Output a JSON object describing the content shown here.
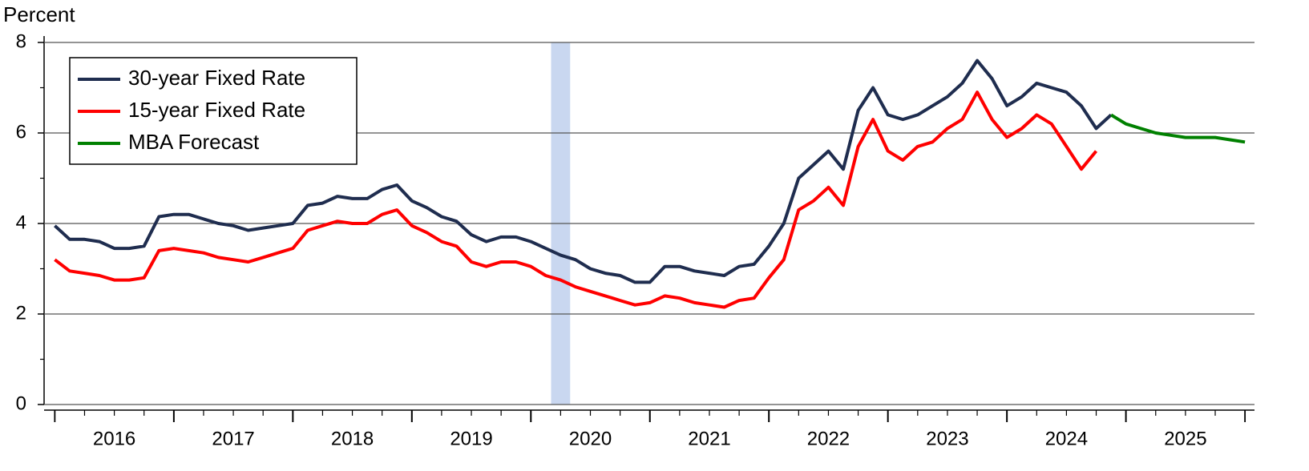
{
  "chart_data": {
    "type": "line",
    "y_label": "Percent",
    "x": [
      2016,
      2016.125,
      2016.25,
      2016.375,
      2016.5,
      2016.625,
      2016.75,
      2016.875,
      2017,
      2017.125,
      2017.25,
      2017.375,
      2017.5,
      2017.625,
      2017.75,
      2017.875,
      2018,
      2018.125,
      2018.25,
      2018.375,
      2018.5,
      2018.625,
      2018.75,
      2018.875,
      2019,
      2019.125,
      2019.25,
      2019.375,
      2019.5,
      2019.625,
      2019.75,
      2019.875,
      2020,
      2020.125,
      2020.25,
      2020.375,
      2020.5,
      2020.625,
      2020.75,
      2020.875,
      2021,
      2021.125,
      2021.25,
      2021.375,
      2021.5,
      2021.625,
      2021.75,
      2021.875,
      2022,
      2022.125,
      2022.25,
      2022.375,
      2022.5,
      2022.625,
      2022.75,
      2022.875,
      2023,
      2023.125,
      2023.25,
      2023.375,
      2023.5,
      2023.625,
      2023.75,
      2023.875,
      2024,
      2024.125,
      2024.25,
      2024.375,
      2024.5,
      2024.625,
      2024.75,
      2024.875,
      2025,
      2025.125,
      2025.25,
      2025.375,
      2025.5,
      2025.625,
      2025.75,
      2025.875,
      2026
    ],
    "series": [
      {
        "name": "30-year Fixed Rate",
        "color": "#1f2d4f",
        "values": [
          3.95,
          3.65,
          3.65,
          3.6,
          3.45,
          3.45,
          3.5,
          4.15,
          4.2,
          4.2,
          4.1,
          4.0,
          3.95,
          3.85,
          3.9,
          3.95,
          4.0,
          4.4,
          4.45,
          4.6,
          4.55,
          4.55,
          4.75,
          4.85,
          4.5,
          4.35,
          4.15,
          4.05,
          3.75,
          3.6,
          3.7,
          3.7,
          3.6,
          3.45,
          3.3,
          3.2,
          3.0,
          2.9,
          2.85,
          2.7,
          2.7,
          3.05,
          3.05,
          2.95,
          2.9,
          2.85,
          3.05,
          3.1,
          3.5,
          4.0,
          5.0,
          5.3,
          5.6,
          5.2,
          6.5,
          7.0,
          6.4,
          6.3,
          6.4,
          6.6,
          6.8,
          7.1,
          7.6,
          7.2,
          6.6,
          6.8,
          7.1,
          7.0,
          6.9,
          6.6,
          6.1,
          6.4,
          null,
          null,
          null,
          null,
          null,
          null,
          null,
          null,
          null
        ]
      },
      {
        "name": "15-year Fixed Rate",
        "color": "#ff0000",
        "values": [
          3.2,
          2.95,
          2.9,
          2.85,
          2.75,
          2.75,
          2.8,
          3.4,
          3.45,
          3.4,
          3.35,
          3.25,
          3.2,
          3.15,
          3.25,
          3.35,
          3.45,
          3.85,
          3.95,
          4.05,
          4.0,
          4.0,
          4.2,
          4.3,
          3.95,
          3.8,
          3.6,
          3.5,
          3.15,
          3.05,
          3.15,
          3.15,
          3.05,
          2.85,
          2.75,
          2.6,
          2.5,
          2.4,
          2.3,
          2.2,
          2.25,
          2.4,
          2.35,
          2.25,
          2.2,
          2.15,
          2.3,
          2.35,
          2.8,
          3.2,
          4.3,
          4.5,
          4.8,
          4.4,
          5.7,
          6.3,
          5.6,
          5.4,
          5.7,
          5.8,
          6.1,
          6.3,
          6.9,
          6.3,
          5.9,
          6.1,
          6.4,
          6.2,
          5.7,
          5.2,
          5.6,
          null,
          null,
          null,
          null,
          null,
          null,
          null,
          null,
          null,
          null
        ]
      },
      {
        "name": "MBA Forecast",
        "color": "#008000",
        "values": [
          null,
          null,
          null,
          null,
          null,
          null,
          null,
          null,
          null,
          null,
          null,
          null,
          null,
          null,
          null,
          null,
          null,
          null,
          null,
          null,
          null,
          null,
          null,
          null,
          null,
          null,
          null,
          null,
          null,
          null,
          null,
          null,
          null,
          null,
          null,
          null,
          null,
          null,
          null,
          null,
          null,
          null,
          null,
          null,
          null,
          null,
          null,
          null,
          null,
          null,
          null,
          null,
          null,
          null,
          null,
          null,
          null,
          null,
          null,
          null,
          null,
          null,
          null,
          null,
          null,
          null,
          null,
          null,
          null,
          null,
          null,
          6.4,
          6.2,
          6.1,
          6.0,
          5.95,
          5.9,
          5.9,
          5.9,
          5.85,
          5.8
        ]
      }
    ],
    "recession_band": [
      2020.17,
      2020.33
    ],
    "band_color": "#c9d7f0",
    "xlim": [
      2015.91,
      2026.08
    ],
    "xticks": [
      {
        "value": 2016.5,
        "label": "2016"
      },
      {
        "value": 2017.5,
        "label": "2017"
      },
      {
        "value": 2018.5,
        "label": "2018"
      },
      {
        "value": 2019.5,
        "label": "2019"
      },
      {
        "value": 2020.5,
        "label": "2020"
      },
      {
        "value": 2021.5,
        "label": "2021"
      },
      {
        "value": 2022.5,
        "label": "2022"
      },
      {
        "value": 2023.5,
        "label": "2023"
      },
      {
        "value": 2024.5,
        "label": "2024"
      },
      {
        "value": 2025.5,
        "label": "2025"
      }
    ],
    "ylim": [
      0,
      8
    ],
    "yticks": [
      0,
      2,
      4,
      6,
      8
    ],
    "yminorticks": [
      1,
      3,
      5,
      7
    ],
    "grid": true,
    "legend": "upper left"
  }
}
